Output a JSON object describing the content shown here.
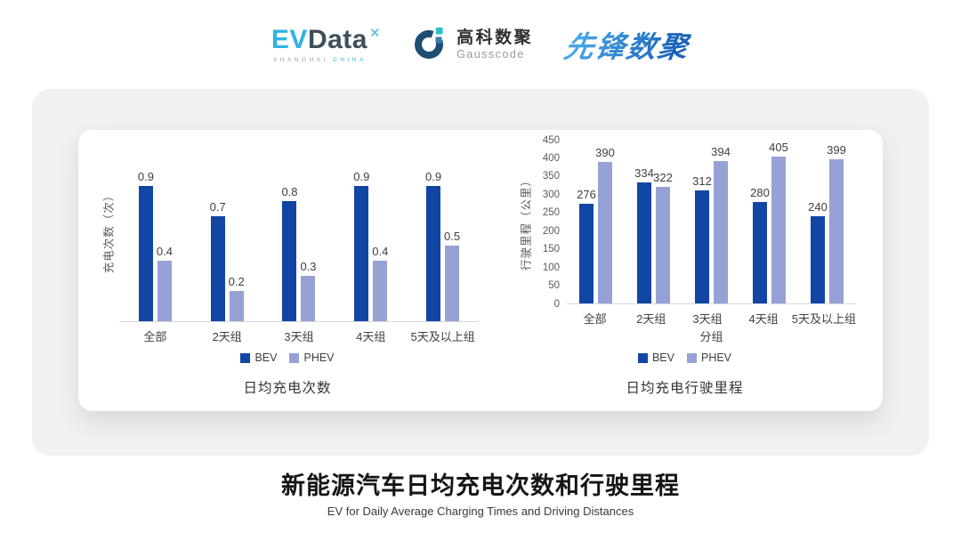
{
  "header": {
    "evdata": {
      "ev": "EV",
      "data": "Data",
      "sparkle_glyph": "✕",
      "sub_left": "SHANGHAI",
      "sub_right": "CHINA"
    },
    "gausscode": {
      "name_cn": "高科数聚",
      "name_en": "Gausscode"
    },
    "pioneer": {
      "name": "先锋数聚"
    }
  },
  "colors": {
    "bev": "#1246a5",
    "phev": "#96a1d6",
    "accent_cyan": "#2fb3e3",
    "logo_dark": "#3d4f5a"
  },
  "chart_data": [
    {
      "type": "bar",
      "title": "日均充电次数",
      "ylabel": "充电次数（次）",
      "xlabel": "",
      "categories": [
        "全部",
        "2天组",
        "3天组",
        "4天组",
        "5天及以上组"
      ],
      "series": [
        {
          "name": "BEV",
          "values": [
            0.9,
            0.7,
            0.8,
            0.9,
            0.9
          ]
        },
        {
          "name": "PHEV",
          "values": [
            0.4,
            0.2,
            0.3,
            0.4,
            0.5
          ]
        }
      ],
      "ylim": [
        0,
        1.2
      ],
      "y_ticks": [],
      "value_labels": true,
      "grid": false,
      "legend_position": "bottom"
    },
    {
      "type": "bar",
      "title": "日均充电行驶里程",
      "ylabel": "行驶里程（公里）",
      "xlabel": "分组",
      "categories": [
        "全部",
        "2天组",
        "3天组",
        "4天组",
        "5天及以上组"
      ],
      "series": [
        {
          "name": "BEV",
          "values": [
            276,
            334,
            312,
            280,
            240
          ]
        },
        {
          "name": "PHEV",
          "values": [
            390,
            322,
            394,
            405,
            399
          ]
        }
      ],
      "ylim": [
        0,
        450
      ],
      "y_ticks": [
        0,
        50,
        100,
        150,
        200,
        250,
        300,
        350,
        400,
        450
      ],
      "value_labels": true,
      "grid": false,
      "legend_position": "bottom"
    }
  ],
  "footer": {
    "title": "新能源汽车日均充电次数和行驶里程",
    "subtitle": "EV for Daily Average Charging Times and Driving Distances"
  }
}
